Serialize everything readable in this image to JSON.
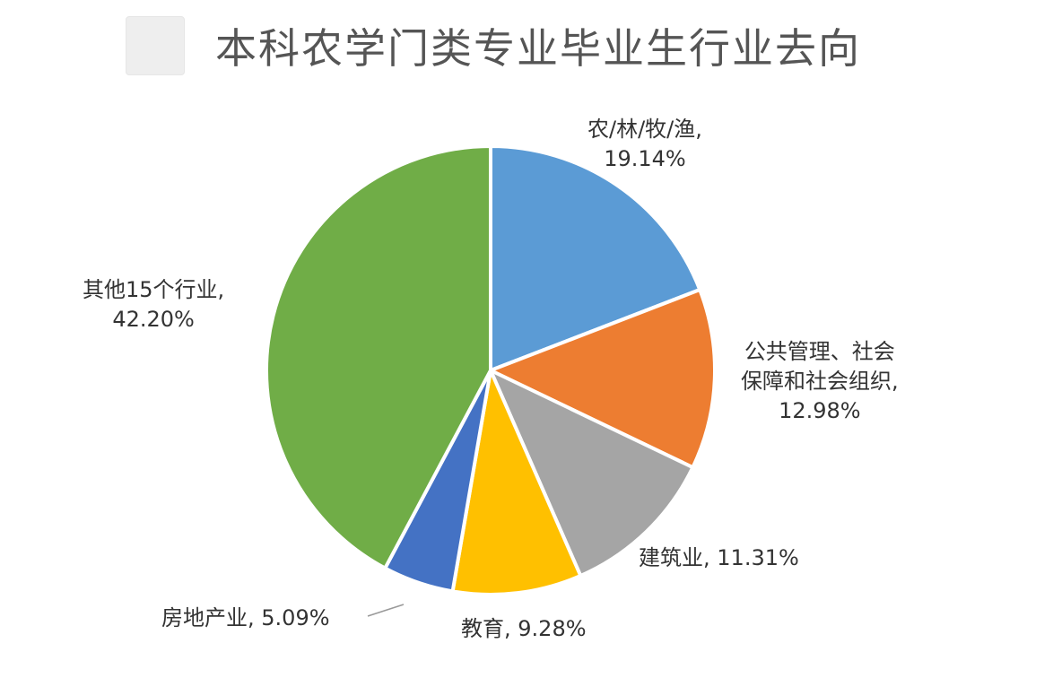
{
  "chart_data": {
    "type": "pie",
    "title": "本科农学门类专业毕业生行业去向",
    "start_angle_deg": 0,
    "direction": "clockwise",
    "slices": [
      {
        "label": "农/林/牧/渔,",
        "value": 19.14,
        "value_text": "19.14%",
        "color": "#5b9bd5"
      },
      {
        "label": "公共管理、社会保障和社会组织,",
        "label_lines": [
          "公共管理、社会",
          "保障和社会组织,"
        ],
        "value": 12.98,
        "value_text": "12.98%",
        "color": "#ed7d31"
      },
      {
        "label": "建筑业,",
        "value": 11.31,
        "value_text": "11.31%",
        "color": "#a5a5a5"
      },
      {
        "label": "教育,",
        "value": 9.28,
        "value_text": "9.28%",
        "color": "#ffc000"
      },
      {
        "label": "房地产业,",
        "value": 5.09,
        "value_text": "5.09%",
        "color": "#4472c4"
      },
      {
        "label": "其他15个行业,",
        "value": 42.2,
        "value_text": "42.20%",
        "color": "#70ad47"
      }
    ]
  }
}
